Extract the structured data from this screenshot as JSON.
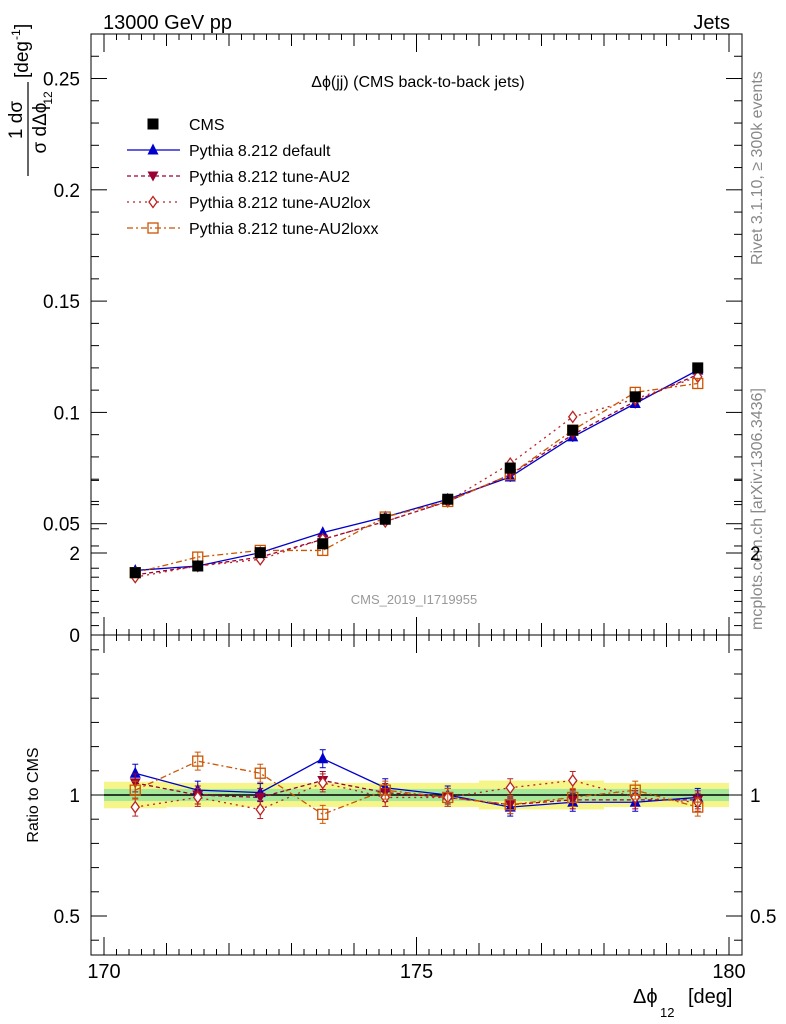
{
  "header": {
    "left": "13000 GeV pp",
    "right": "Jets"
  },
  "side_labels": {
    "rivet": "Rivet 3.1.10, ≥ 300k events",
    "mcplots": "mcplots.cern.ch [arXiv:1306.3436]"
  },
  "chart_data": {
    "type": "line",
    "title": "Δϕ(jj) (CMS back-to-back jets)",
    "analysis_label": "CMS_2019_I1719955",
    "xlabel": "Δϕ",
    "xlabel_sub": "12",
    "xlabel_unit": "[deg]",
    "ylabel_main": "[deg",
    "ylabel_sup": "-1",
    "ylabel_frac_num": "1 dσ",
    "ylabel_frac_den": "σ dΔϕ",
    "ylabel_frac_sub": "12",
    "ratio_ylabel": "Ratio to CMS",
    "xlim": [
      170,
      180
    ],
    "ylim": [
      0,
      0.27
    ],
    "ratio_ylim": [
      0.35,
      2.35
    ],
    "x_ticks": [
      "170",
      "175",
      "180"
    ],
    "y_ticks": [
      "0",
      "0.05",
      "0.1",
      "0.15",
      "0.2",
      "0.25"
    ],
    "ratio_y_ticks": [
      "0.5",
      "1",
      "2"
    ],
    "x": [
      170.5,
      171.5,
      172.5,
      173.5,
      174.5,
      175.5,
      176.5,
      177.5,
      178.5,
      179.5
    ],
    "data": {
      "name": "CMS",
      "values": [
        0.028,
        0.031,
        0.037,
        0.041,
        0.052,
        0.061,
        0.075,
        0.092,
        0.107,
        0.12
      ],
      "band_inner": [
        0.025,
        0.025,
        0.025,
        0.025,
        0.025,
        0.025,
        0.025,
        0.025,
        0.025,
        0.025
      ],
      "band_outer": [
        0.055,
        0.05,
        0.05,
        0.05,
        0.05,
        0.05,
        0.06,
        0.06,
        0.05,
        0.05
      ]
    },
    "series": [
      {
        "name": "Pythia 8.212 default",
        "color": "#0000cc",
        "marker": "triangle-up",
        "dash": "",
        "values": [
          0.029,
          0.031,
          0.037,
          0.046,
          0.053,
          0.061,
          0.071,
          0.089,
          0.104,
          0.119
        ],
        "ratio": [
          1.09,
          1.02,
          1.01,
          1.15,
          1.03,
          1.0,
          0.95,
          0.97,
          0.97,
          0.99
        ]
      },
      {
        "name": "Pythia 8.212 tune-AU2",
        "color": "#990033",
        "marker": "triangle-down",
        "dash": "4,3",
        "values": [
          0.027,
          0.031,
          0.035,
          0.043,
          0.051,
          0.06,
          0.072,
          0.09,
          0.105,
          0.117
        ],
        "ratio": [
          1.05,
          1.0,
          0.99,
          1.06,
          1.01,
          0.99,
          0.96,
          0.98,
          0.98,
          0.98
        ]
      },
      {
        "name": "Pythia 8.212 tune-AU2lox",
        "color": "#bb2222",
        "marker": "diamond-open",
        "dash": "2,4",
        "values": [
          0.026,
          0.031,
          0.034,
          0.043,
          0.051,
          0.06,
          0.077,
          0.098,
          0.106,
          0.116
        ],
        "ratio": [
          0.95,
          0.99,
          0.94,
          1.05,
          0.99,
          0.99,
          1.03,
          1.06,
          0.99,
          0.97
        ]
      },
      {
        "name": "Pythia 8.212 tune-AU2loxx",
        "color": "#cc5500",
        "marker": "square-open",
        "dash": "6,3,2,3",
        "values": [
          0.028,
          0.035,
          0.038,
          0.038,
          0.053,
          0.06,
          0.072,
          0.092,
          0.109,
          0.113
        ],
        "ratio": [
          1.02,
          1.14,
          1.09,
          0.92,
          1.02,
          0.99,
          0.96,
          0.99,
          1.02,
          0.95
        ]
      }
    ],
    "data_label": "CMS"
  }
}
